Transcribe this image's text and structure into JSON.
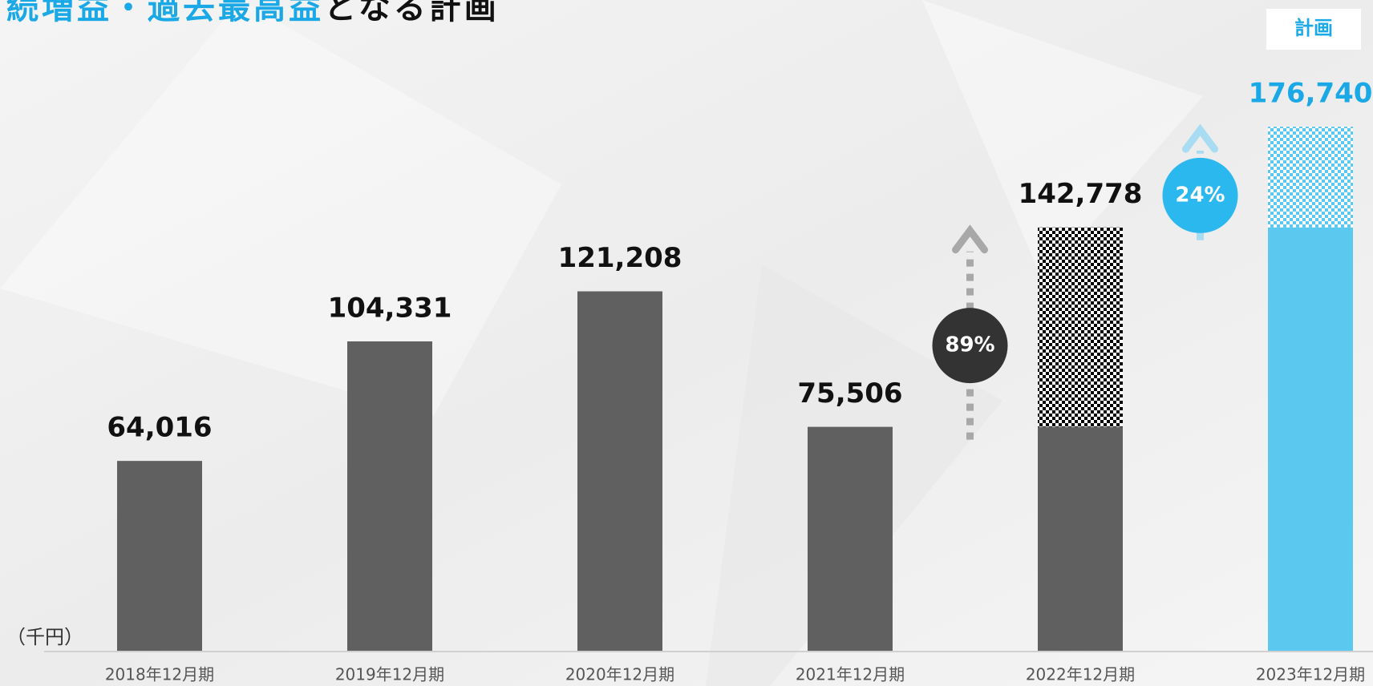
{
  "chart_data": {
    "type": "bar",
    "title_highlight": "続増益・過去最高益",
    "title": "となる計画",
    "badge": "計画",
    "unit_label": "（千円）",
    "categories": [
      "2018年12月期",
      "2019年12月期",
      "2020年12月期",
      "2021年12月期",
      "2022年12月期",
      "2023年12月期"
    ],
    "values": [
      64016,
      104331,
      121208,
      75506,
      142778,
      176740
    ],
    "value_labels": [
      "64,016",
      "104,331",
      "121,208",
      "75,506",
      "142,778",
      "176,740"
    ],
    "colors": [
      "#606060",
      "#606060",
      "#606060",
      "#606060",
      "#606060",
      "#5bc8f0"
    ],
    "label_colors": [
      "#111111",
      "#111111",
      "#111111",
      "#111111",
      "#111111",
      "#1aa9e6"
    ],
    "annotations": [
      {
        "label": "89%",
        "color": "#333333",
        "arrow_color": "#a8a8a8"
      },
      {
        "label": "24%",
        "color": "#2bb8ee",
        "arrow_color": "#a8dcf2"
      }
    ],
    "ylim": [
      0,
      180000
    ]
  }
}
